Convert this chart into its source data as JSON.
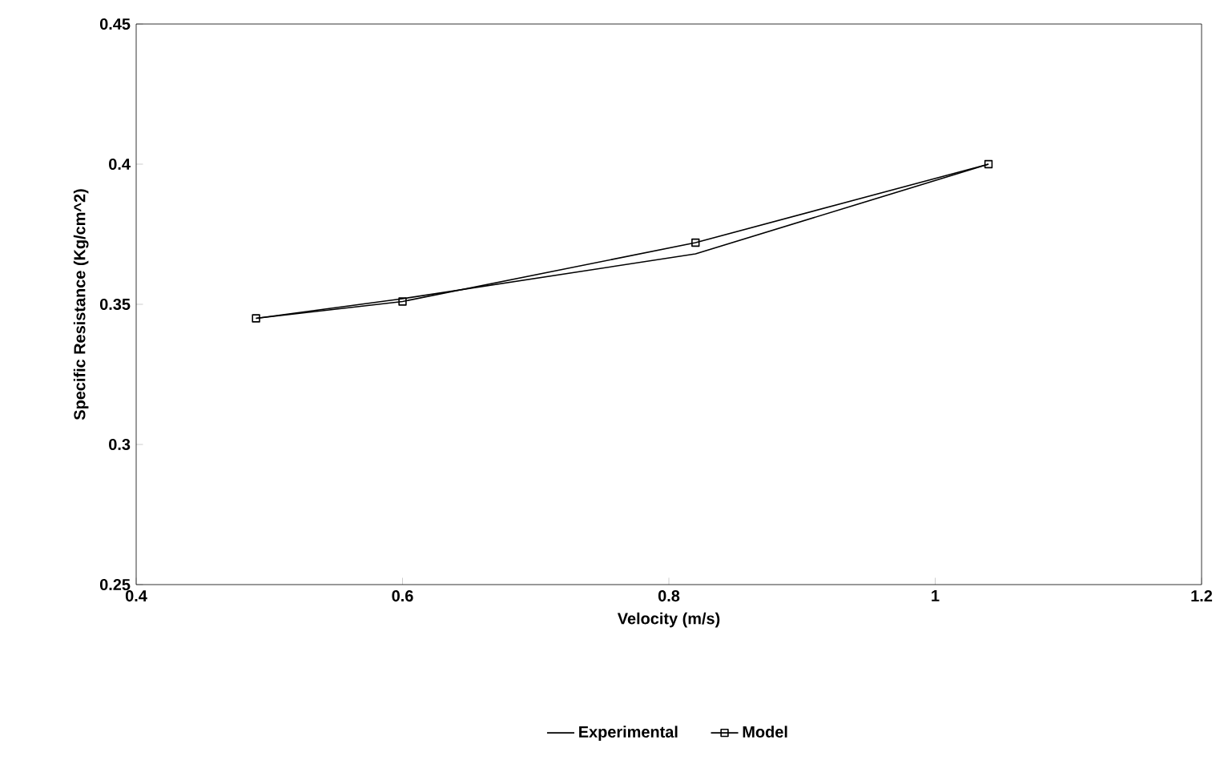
{
  "chart_data": {
    "type": "line",
    "xlabel": "Velocity (m/s)",
    "ylabel": "Specific Resistance (Kg/cm^2)",
    "x": [
      0.49,
      0.6,
      0.82,
      1.04
    ],
    "series": [
      {
        "name": "Experimental",
        "color": "#000000",
        "values": [
          0.345,
          0.352,
          0.368,
          0.4
        ]
      },
      {
        "name": "Model",
        "color": "#000000",
        "values": [
          0.345,
          0.351,
          0.372,
          0.4
        ],
        "marker": "square"
      }
    ],
    "xlim": [
      0.4,
      1.2
    ],
    "ylim": [
      0.25,
      0.45
    ],
    "xticks": [
      0.4,
      0.6,
      0.8,
      1,
      1.2
    ],
    "yticks": [
      0.25,
      0.3,
      0.35,
      0.4,
      0.45
    ],
    "legend": "bottom",
    "line_style": "solid"
  }
}
